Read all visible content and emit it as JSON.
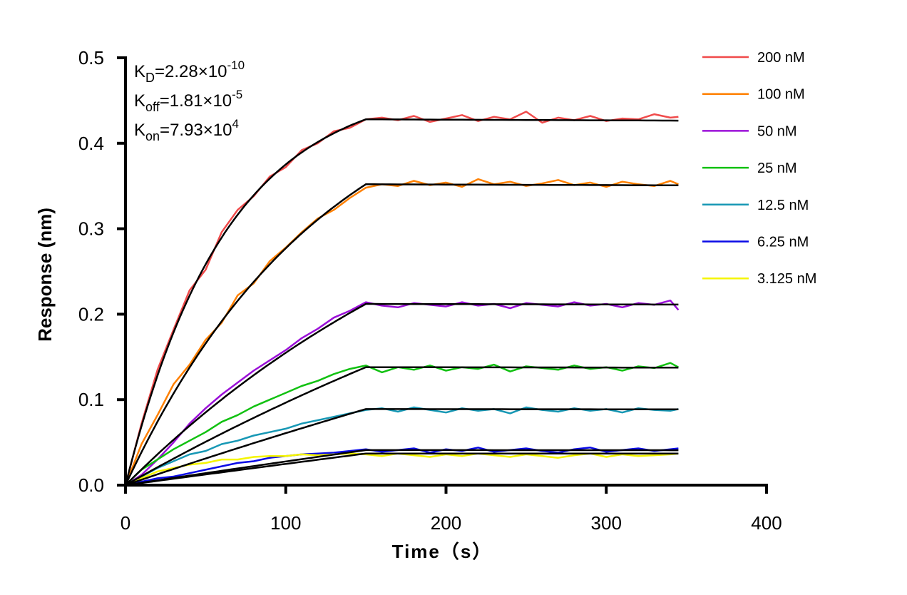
{
  "chart_data": {
    "type": "line",
    "xlabel": "Time（s）",
    "ylabel": "Response (nm)",
    "xlim": [
      0,
      400
    ],
    "ylim": [
      0,
      0.5
    ],
    "xticks": [
      "0",
      "100",
      "200",
      "300",
      "400"
    ],
    "yticks": [
      "0.0",
      "0.1",
      "0.2",
      "0.3",
      "0.4",
      "0.5"
    ],
    "grid": false,
    "legend_position": "right",
    "association_end": 150,
    "annotations": [
      {
        "symbol": "K",
        "sub": "D",
        "text": "=2.28×10",
        "exp": "-10"
      },
      {
        "symbol": "K",
        "sub": "off",
        "text": "=1.81×10",
        "exp": "-5"
      },
      {
        "symbol": "K",
        "sub": "on",
        "text": "=7.93×10",
        "exp": "4"
      }
    ],
    "kinetics": {
      "KD": 2.28e-10,
      "koff": 1.81e-05,
      "kon": 79300.0
    },
    "fit_color": "#000000",
    "x": [
      0,
      10,
      20,
      30,
      40,
      50,
      60,
      70,
      80,
      90,
      100,
      110,
      120,
      130,
      140,
      150,
      160,
      170,
      180,
      190,
      200,
      210,
      220,
      230,
      240,
      250,
      260,
      270,
      280,
      290,
      300,
      310,
      320,
      330,
      340,
      345
    ],
    "series": [
      {
        "name": "200 nM",
        "conc_nM": 200,
        "color": "#f04b4b",
        "fit_plateau": 0.428,
        "values": [
          0,
          0.072,
          0.135,
          0.182,
          0.228,
          0.252,
          0.296,
          0.322,
          0.338,
          0.361,
          0.372,
          0.392,
          0.4,
          0.414,
          0.418,
          0.428,
          0.43,
          0.427,
          0.432,
          0.425,
          0.429,
          0.433,
          0.426,
          0.431,
          0.428,
          0.437,
          0.424,
          0.43,
          0.427,
          0.432,
          0.426,
          0.429,
          0.428,
          0.434,
          0.43,
          0.431
        ]
      },
      {
        "name": "100 nM",
        "conc_nM": 100,
        "color": "#ff8000",
        "fit_plateau": 0.352,
        "values": [
          0,
          0.048,
          0.082,
          0.118,
          0.141,
          0.17,
          0.19,
          0.222,
          0.236,
          0.262,
          0.278,
          0.296,
          0.312,
          0.322,
          0.336,
          0.348,
          0.352,
          0.35,
          0.356,
          0.351,
          0.354,
          0.349,
          0.358,
          0.352,
          0.355,
          0.35,
          0.353,
          0.357,
          0.351,
          0.354,
          0.349,
          0.355,
          0.352,
          0.35,
          0.356,
          0.352
        ]
      },
      {
        "name": "50 nM",
        "conc_nM": 50,
        "color": "#9b10d8",
        "fit_plateau": 0.212,
        "values": [
          0,
          0.012,
          0.03,
          0.05,
          0.072,
          0.09,
          0.106,
          0.12,
          0.134,
          0.146,
          0.158,
          0.172,
          0.183,
          0.196,
          0.204,
          0.214,
          0.21,
          0.208,
          0.213,
          0.211,
          0.209,
          0.214,
          0.21,
          0.212,
          0.207,
          0.213,
          0.211,
          0.209,
          0.214,
          0.21,
          0.212,
          0.208,
          0.213,
          0.211,
          0.216,
          0.205
        ]
      },
      {
        "name": "25 nM",
        "conc_nM": 25,
        "color": "#11c111",
        "fit_plateau": 0.138,
        "values": [
          0,
          0.018,
          0.03,
          0.042,
          0.052,
          0.062,
          0.074,
          0.082,
          0.092,
          0.1,
          0.108,
          0.116,
          0.122,
          0.13,
          0.136,
          0.14,
          0.132,
          0.138,
          0.135,
          0.14,
          0.134,
          0.138,
          0.136,
          0.141,
          0.133,
          0.139,
          0.137,
          0.135,
          0.14,
          0.136,
          0.138,
          0.134,
          0.139,
          0.137,
          0.143,
          0.138
        ]
      },
      {
        "name": "12.5 nM",
        "conc_nM": 12.5,
        "color": "#1798b5",
        "fit_plateau": 0.089,
        "values": [
          0,
          0.01,
          0.02,
          0.028,
          0.036,
          0.04,
          0.048,
          0.052,
          0.058,
          0.062,
          0.066,
          0.072,
          0.076,
          0.08,
          0.084,
          0.088,
          0.09,
          0.086,
          0.091,
          0.088,
          0.085,
          0.09,
          0.087,
          0.089,
          0.084,
          0.091,
          0.088,
          0.086,
          0.09,
          0.087,
          0.089,
          0.085,
          0.09,
          0.088,
          0.087,
          0.089
        ]
      },
      {
        "name": "6.25 nM",
        "conc_nM": 6.25,
        "color": "#0a0ae6",
        "fit_plateau": 0.041,
        "values": [
          0,
          0.004,
          0.008,
          0.01,
          0.014,
          0.018,
          0.022,
          0.026,
          0.028,
          0.032,
          0.034,
          0.036,
          0.037,
          0.038,
          0.04,
          0.042,
          0.039,
          0.041,
          0.043,
          0.038,
          0.042,
          0.04,
          0.044,
          0.039,
          0.041,
          0.043,
          0.04,
          0.038,
          0.042,
          0.044,
          0.039,
          0.041,
          0.043,
          0.04,
          0.042,
          0.043
        ]
      },
      {
        "name": "3.125 nM",
        "conc_nM": 3.125,
        "color": "#f5f500",
        "fit_plateau": 0.037,
        "values": [
          0,
          0.008,
          0.016,
          0.02,
          0.024,
          0.026,
          0.03,
          0.03,
          0.033,
          0.034,
          0.034,
          0.036,
          0.035,
          0.036,
          0.037,
          0.036,
          0.034,
          0.037,
          0.035,
          0.033,
          0.036,
          0.034,
          0.037,
          0.035,
          0.033,
          0.036,
          0.034,
          0.032,
          0.035,
          0.037,
          0.033,
          0.036,
          0.034,
          0.035,
          0.036,
          0.037
        ]
      }
    ]
  }
}
